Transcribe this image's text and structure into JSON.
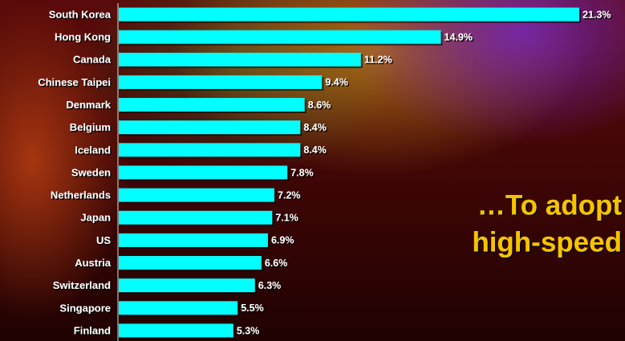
{
  "chart_data": {
    "type": "bar",
    "orientation": "horizontal",
    "categories": [
      "South Korea",
      "Hong Kong",
      "Canada",
      "Chinese Taipei",
      "Denmark",
      "Belgium",
      "Iceland",
      "Sweden",
      "Netherlands",
      "Japan",
      "US",
      "Austria",
      "Switzerland",
      "Singapore",
      "Finland"
    ],
    "values": [
      21.3,
      14.9,
      11.2,
      9.4,
      8.6,
      8.4,
      8.4,
      7.8,
      7.2,
      7.1,
      6.9,
      6.6,
      6.3,
      5.5,
      5.3
    ],
    "value_labels": [
      "21.3%",
      "14.9%",
      "11.2%",
      "9.4%",
      "8.6%",
      "8.4%",
      "8.4%",
      "7.8%",
      "7.2%",
      "7.1%",
      "6.9%",
      "6.6%",
      "6.3%",
      "5.5%",
      "5.3%"
    ],
    "color": "#00ffff",
    "annotations": [
      "…To adopt",
      "high-speed"
    ]
  }
}
